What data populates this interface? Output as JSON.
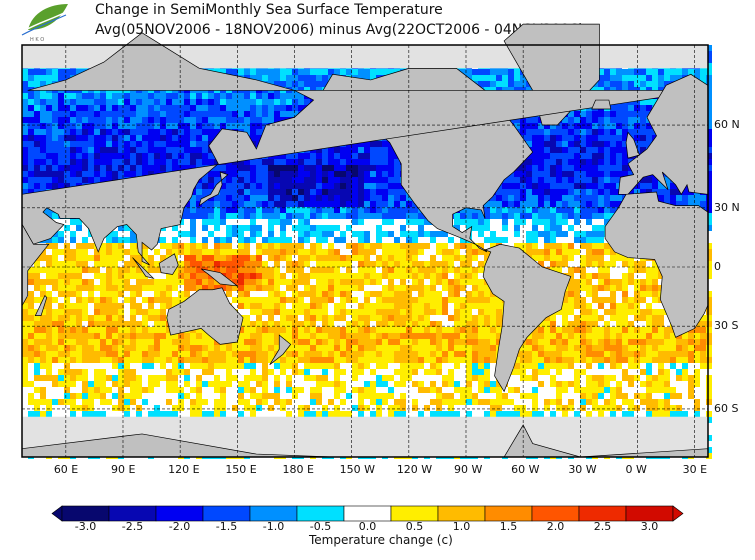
{
  "title": {
    "line1": "Change in SemiMonthly Sea Surface Temperature",
    "line2": "Avg(05NOV2006 - 18NOV2006) minus Avg(22OCT2006 - 04NOV2006)"
  },
  "logo": {
    "text": "HKO"
  },
  "axes": {
    "lon_labels": [
      "60 E",
      "90 E",
      "120 E",
      "150 E",
      "180 E",
      "150 W",
      "120 W",
      "90 W",
      "60 W",
      "30 W",
      "0 W",
      "30 E"
    ],
    "lon_values": [
      60,
      90,
      120,
      150,
      180,
      210,
      240,
      270,
      300,
      330,
      360,
      390
    ],
    "lat_labels": [
      "60 N",
      "30 N",
      "0",
      "30 S",
      "60 S"
    ],
    "lat_values": [
      60,
      30,
      0,
      -30,
      -60
    ]
  },
  "colorbar": {
    "title": "Temperature change  (c)",
    "labels": [
      "-3.0",
      "-2.5",
      "-2.0",
      "-1.5",
      "-1.0",
      "-0.5",
      "0.0",
      "0.5",
      "1.0",
      "1.5",
      "2.0",
      "2.5",
      "3.0"
    ],
    "colors": [
      "#07076e",
      "#0707b2",
      "#0000f2",
      "#0048ff",
      "#0090ff",
      "#00e0ff",
      "#ffffff",
      "#ffee00",
      "#ffbb00",
      "#ff8c00",
      "#ff5500",
      "#ee2a00",
      "#d20a00"
    ]
  },
  "colors": {
    "land": "#c0c0c0",
    "ice": "#e2e2e2"
  }
}
